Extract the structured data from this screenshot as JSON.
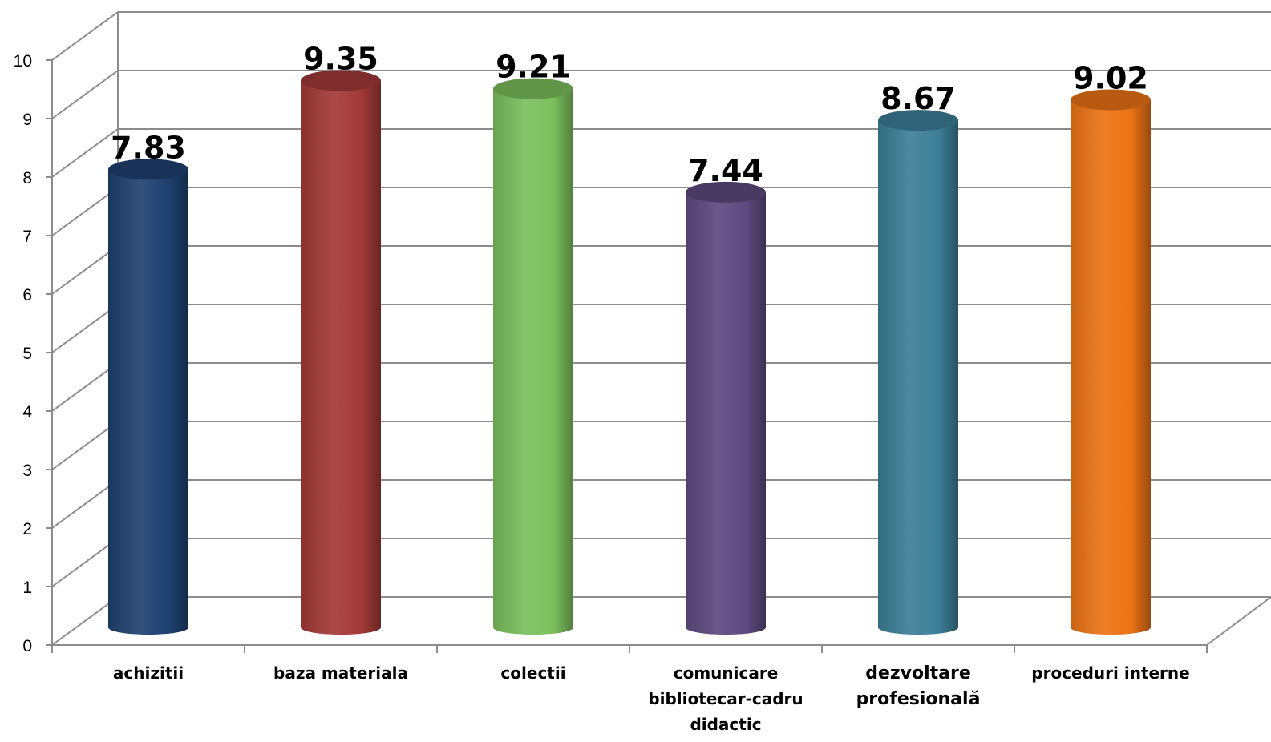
{
  "chart_data": {
    "type": "bar",
    "style": "3d-cylinder",
    "categories": [
      [
        "achizitii"
      ],
      [
        "baza materiala"
      ],
      [
        "colectii"
      ],
      [
        "comunicare",
        "bibliotecar-cadru",
        "didactic"
      ],
      [
        "dezvoltare",
        "profesională"
      ],
      [
        "proceduri interne"
      ]
    ],
    "category_large": [
      false,
      false,
      false,
      false,
      true,
      false
    ],
    "values": [
      7.83,
      9.35,
      9.21,
      7.44,
      8.67,
      9.02
    ],
    "value_labels": [
      "7.83",
      "9.35",
      "9.21",
      "7.44",
      "8.67",
      "9.02"
    ],
    "colors": [
      "#1f4170",
      "#a33a38",
      "#7cc05e",
      "#5e4a80",
      "#3d7f98",
      "#ec7416"
    ],
    "yticks": [
      "0",
      "1",
      "2",
      "3",
      "4",
      "5",
      "6",
      "7",
      "8",
      "9",
      "10"
    ],
    "ylim": [
      0,
      10
    ],
    "grid": true,
    "legend": "none",
    "title": "",
    "xlabel": "",
    "ylabel": ""
  }
}
